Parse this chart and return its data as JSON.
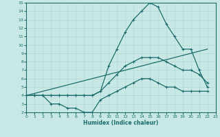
{
  "xlabel": "Humidex (Indice chaleur)",
  "xlim": [
    0,
    23
  ],
  "ylim": [
    2,
    15
  ],
  "yticks": [
    2,
    3,
    4,
    5,
    6,
    7,
    8,
    9,
    10,
    11,
    12,
    13,
    14,
    15
  ],
  "xticks": [
    0,
    1,
    2,
    3,
    4,
    5,
    6,
    7,
    8,
    9,
    10,
    11,
    12,
    13,
    14,
    15,
    16,
    17,
    18,
    19,
    20,
    21,
    22,
    23
  ],
  "bg_color": "#c8e8e5",
  "grid_color": "#b0d8d5",
  "line_color": "#1a6b6b",
  "line1_x": [
    0,
    1,
    2,
    3,
    4,
    5,
    6,
    7,
    8,
    9,
    10,
    11,
    12,
    13,
    14,
    15,
    16,
    17,
    18,
    19,
    20,
    21,
    22
  ],
  "line1_y": [
    4,
    4,
    4,
    4,
    4,
    4,
    4,
    4,
    4,
    4.5,
    7.5,
    9.5,
    11.5,
    13.0,
    14.0,
    15.0,
    14.5,
    12.5,
    11.0,
    9.5,
    9.5,
    7.0,
    5.0
  ],
  "line2_x": [
    0,
    22
  ],
  "line2_y": [
    4,
    9.5
  ],
  "line3_x": [
    0,
    1,
    2,
    3,
    4,
    5,
    6,
    7,
    8,
    9,
    10,
    11,
    12,
    13,
    14,
    15,
    16,
    17,
    18,
    19,
    20,
    21,
    22
  ],
  "line3_y": [
    4,
    4,
    4,
    4,
    4,
    4,
    4,
    4,
    4,
    4.5,
    5.5,
    6.5,
    7.5,
    8.0,
    8.5,
    8.5,
    8.5,
    8.0,
    7.5,
    7.0,
    7.0,
    6.5,
    5.5
  ],
  "line4_x": [
    0,
    1,
    2,
    3,
    4,
    5,
    6,
    7,
    8,
    9,
    10,
    11,
    12,
    13,
    14,
    15,
    16,
    17,
    18,
    19,
    20,
    21,
    22
  ],
  "line4_y": [
    4,
    4,
    4,
    3,
    3,
    2.5,
    2.5,
    2.0,
    2.0,
    3.5,
    4.0,
    4.5,
    5.0,
    5.5,
    6.0,
    6.0,
    5.5,
    5.0,
    5.0,
    4.5,
    4.5,
    4.5,
    4.5
  ]
}
